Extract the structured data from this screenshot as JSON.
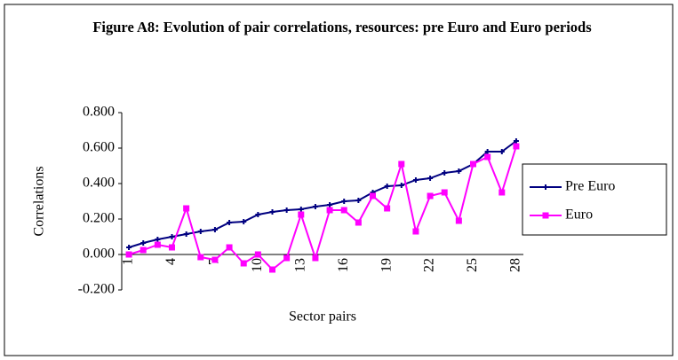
{
  "chart_data": {
    "type": "line",
    "title": "Figure A8: Evolution of pair correlations, resources: pre Euro and Euro periods",
    "x_label": "Sector pairs",
    "y_label": "Correlations",
    "categories": [
      "1",
      null,
      null,
      "4",
      null,
      null,
      "7",
      null,
      null,
      "10",
      null,
      null,
      "13",
      null,
      null,
      "16",
      null,
      null,
      "19",
      null,
      null,
      "22",
      null,
      null,
      "25",
      null,
      null,
      "28"
    ],
    "series": [
      {
        "name": "Pre Euro",
        "color": "#000080",
        "marker": "plus",
        "values": [
          0.04,
          0.065,
          0.085,
          0.1,
          0.115,
          0.13,
          0.14,
          0.18,
          0.185,
          0.225,
          0.24,
          0.25,
          0.255,
          0.27,
          0.28,
          0.3,
          0.305,
          0.35,
          0.385,
          0.39,
          0.42,
          0.43,
          0.46,
          0.47,
          0.51,
          0.58,
          0.58,
          0.64
        ]
      },
      {
        "name": "Euro",
        "color": "#ff00ff",
        "marker": "square",
        "values": [
          0.0,
          0.025,
          0.055,
          0.04,
          0.26,
          -0.015,
          -0.03,
          0.04,
          -0.05,
          0.0,
          -0.085,
          -0.02,
          0.225,
          -0.02,
          0.25,
          0.25,
          0.18,
          0.33,
          0.26,
          0.51,
          0.13,
          0.33,
          0.35,
          0.19,
          0.51,
          0.55,
          0.35,
          0.61
        ]
      }
    ],
    "ylim": [
      -0.2,
      0.8
    ],
    "yticks": [
      {
        "value": -0.2,
        "label": "-0.200"
      },
      {
        "value": 0,
        "label": "0.000"
      },
      {
        "value": 0.2,
        "label": "0.200"
      },
      {
        "value": 0.4,
        "label": "0.400"
      },
      {
        "value": 0.6,
        "label": "0.600"
      },
      {
        "value": 0.8,
        "label": "0.800"
      }
    ],
    "legend": "right"
  }
}
